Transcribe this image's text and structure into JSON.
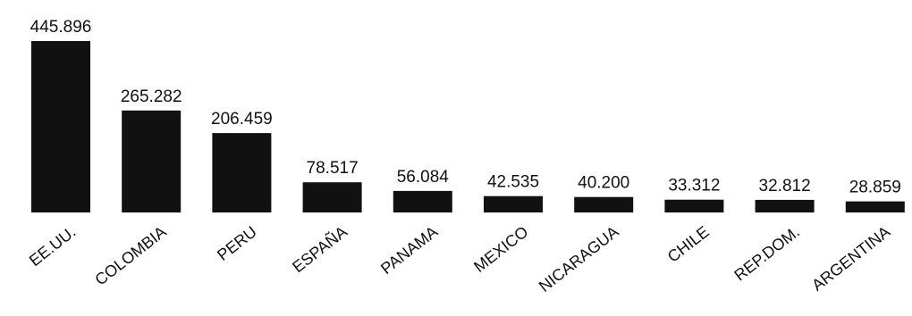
{
  "chart_data": {
    "type": "bar",
    "categories": [
      "EE.UU.",
      "COLOMBIA",
      "PERU",
      "ESPAÑA",
      "PANAMA",
      "MEXICO",
      "NICARAGUA",
      "CHILE",
      "REP.DOM.",
      "ARGENTINA"
    ],
    "values": [
      445896,
      265282,
      206459,
      78517,
      56084,
      42535,
      40200,
      33312,
      32812,
      28859
    ],
    "value_labels": [
      "445.896",
      "265.282",
      "206.459",
      "78.517",
      "56.084",
      "42.535",
      "40.200",
      "33.312",
      "32.812",
      "28.859"
    ],
    "title": "",
    "xlabel": "",
    "ylabel": "",
    "ylim": [
      0,
      445896
    ],
    "grid": false,
    "legend": "none",
    "bar_color": "#111111"
  }
}
